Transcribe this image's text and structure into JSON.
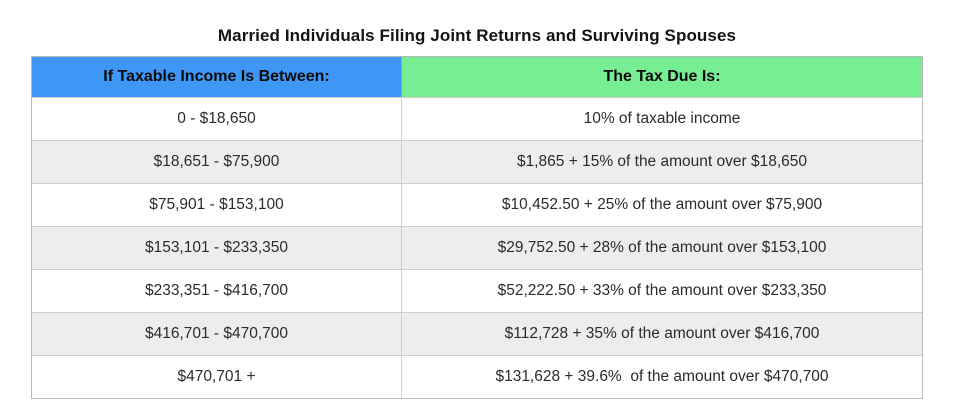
{
  "title": "Married Individuals Filing Joint Returns and Surviving Spouses",
  "table": {
    "headers": {
      "income": "If Taxable Income Is Between:",
      "tax": "The Tax Due Is:"
    },
    "rows": [
      {
        "income": "0 - $18,650",
        "tax": "10% of taxable income"
      },
      {
        "income": "$18,651 - $75,900",
        "tax": "$1,865 + 15% of the amount over $18,650"
      },
      {
        "income": "$75,901 - $153,100",
        "tax": "$10,452.50 + 25% of the amount over $75,900"
      },
      {
        "income": "$153,101 - $233,350",
        "tax": "$29,752.50 + 28% of the amount over $153,100"
      },
      {
        "income": "$233,351 - $416,700",
        "tax": "$52,222.50 + 33% of the amount over $233,350"
      },
      {
        "income": "$416,701 - $470,700",
        "tax": "$112,728 + 35% of the amount over $416,700"
      },
      {
        "income": "$470,701 +",
        "tax": "$131,628 + 39.6%  of the amount over $470,700"
      }
    ]
  },
  "colors": {
    "income_header_bg": "#3e96f5",
    "tax_header_bg": "#77ee94",
    "alt_row_bg": "#ededed",
    "row_bg": "#ffffff",
    "border": "#cfcfcf",
    "outer_border": "#b9b9b9",
    "text": "#2b2b2b",
    "header_text": "#0c0c0c"
  }
}
